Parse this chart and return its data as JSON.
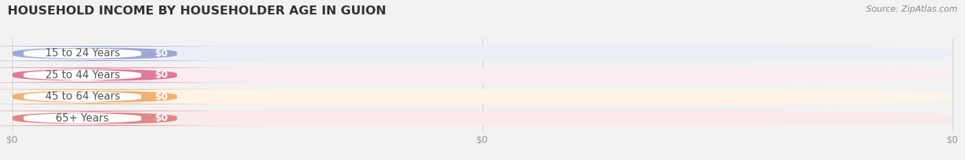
{
  "title": "HOUSEHOLD INCOME BY HOUSEHOLDER AGE IN GUION",
  "source": "Source: ZipAtlas.com",
  "categories": [
    "15 to 24 Years",
    "25 to 44 Years",
    "45 to 64 Years",
    "65+ Years"
  ],
  "values": [
    0,
    0,
    0,
    0
  ],
  "bar_colors": [
    "#9fa8d5",
    "#e07a96",
    "#edb272",
    "#e08888"
  ],
  "bar_bg_colors": [
    "#eceef7",
    "#faedf1",
    "#fdf3e7",
    "#faeaea"
  ],
  "bg_color": "#f2f2f2",
  "title_fontsize": 13,
  "source_fontsize": 9,
  "label_fontsize": 11,
  "value_fontsize": 10,
  "tick_color": "#999999",
  "tick_fontsize": 10
}
